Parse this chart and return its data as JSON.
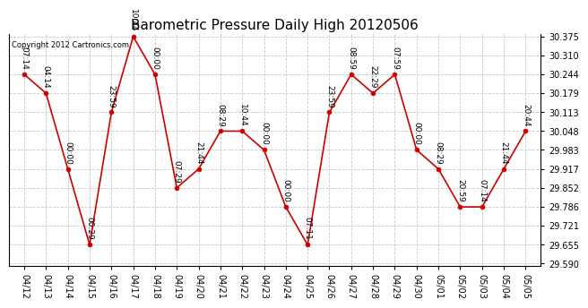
{
  "title": "Barometric Pressure Daily High 20120506",
  "copyright": "Copyright 2012 Cartronics.com",
  "x_labels": [
    "04/12",
    "04/13",
    "04/14",
    "04/15",
    "04/16",
    "04/17",
    "04/18",
    "04/19",
    "04/20",
    "04/21",
    "04/22",
    "04/23",
    "04/24",
    "04/25",
    "04/26",
    "04/27",
    "04/28",
    "04/29",
    "04/30",
    "05/01",
    "05/02",
    "05/03",
    "05/04",
    "05/05"
  ],
  "y_values": [
    30.244,
    30.179,
    29.917,
    29.655,
    30.113,
    30.375,
    30.244,
    29.852,
    29.917,
    30.048,
    30.048,
    29.983,
    29.786,
    29.655,
    30.113,
    30.244,
    30.179,
    30.244,
    29.983,
    29.917,
    29.786,
    29.786,
    29.917,
    30.048
  ],
  "time_labels": [
    "07:14",
    "04:14",
    "00:00",
    "00:29",
    "23:59",
    "10:44",
    "00:00",
    "07:29",
    "21:44",
    "08:29",
    "10:44",
    "00:00",
    "00:00",
    "07:11",
    "23:59",
    "08:59",
    "22:29",
    "07:59",
    "00:00",
    "08:29",
    "20:59",
    "07:14",
    "21:44",
    "20:44"
  ],
  "y_min": 29.59,
  "y_max": 30.375,
  "y_ticks": [
    29.59,
    29.655,
    29.721,
    29.786,
    29.852,
    29.917,
    29.983,
    30.048,
    30.113,
    30.179,
    30.244,
    30.31,
    30.375
  ],
  "line_color": "#cc0000",
  "marker_color": "#cc0000",
  "bg_color": "#ffffff",
  "grid_color": "#bbbbbb",
  "title_fontsize": 11,
  "label_fontsize": 6.5,
  "tick_fontsize": 7,
  "copyright_fontsize": 6
}
